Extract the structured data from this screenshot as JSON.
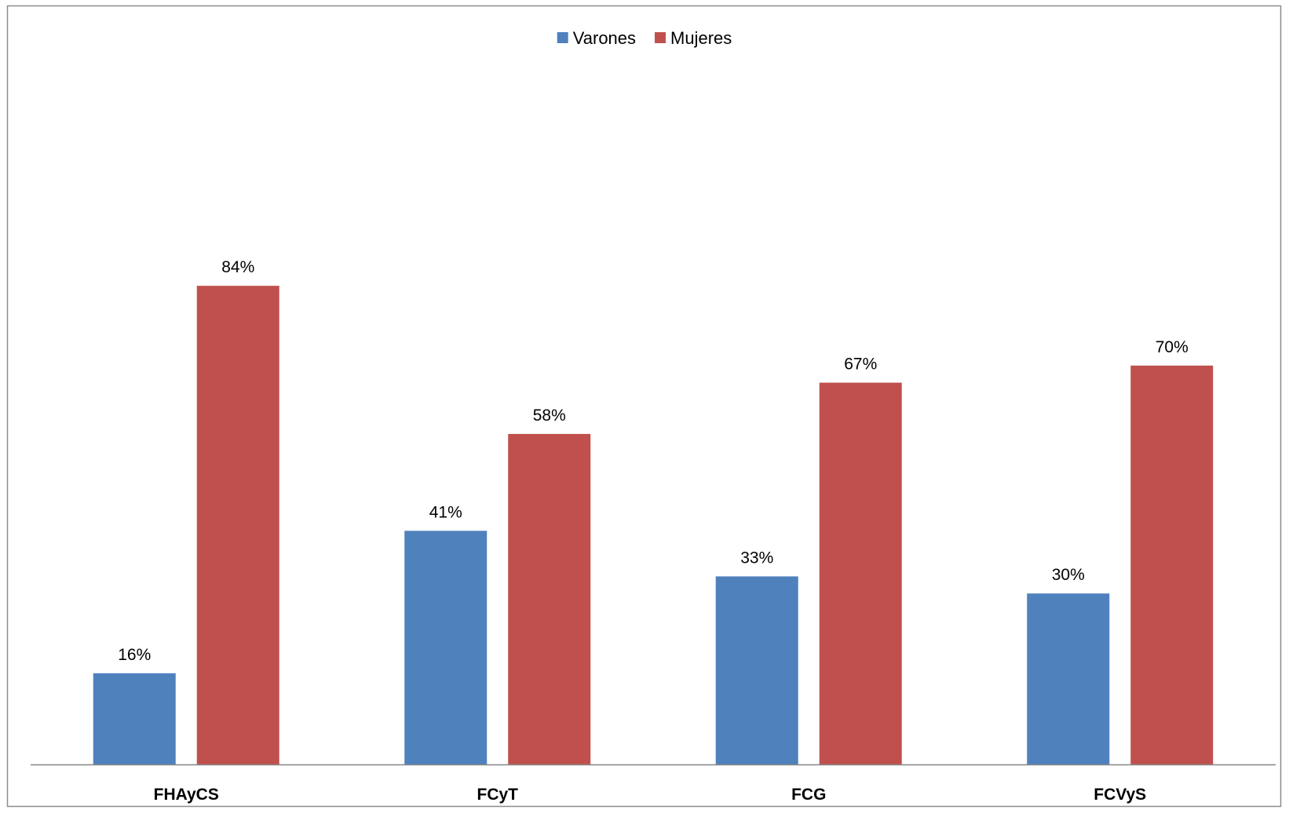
{
  "chart_data": {
    "type": "bar",
    "title": "",
    "xlabel": "",
    "ylabel": "",
    "categories": [
      "FHAyCS",
      "FCyT",
      "FCG",
      "FCVyS"
    ],
    "series": [
      {
        "name": "Varones",
        "values": [
          16,
          41,
          33,
          30
        ],
        "color": "#4F81BD"
      },
      {
        "name": "Mujeres",
        "values": [
          84,
          58,
          67,
          70
        ],
        "color": "#C0504D"
      }
    ],
    "value_suffix": "%",
    "ylim": [
      0,
      100
    ],
    "grid": false,
    "legend_position": "top-center",
    "y_axis_visible": false
  }
}
